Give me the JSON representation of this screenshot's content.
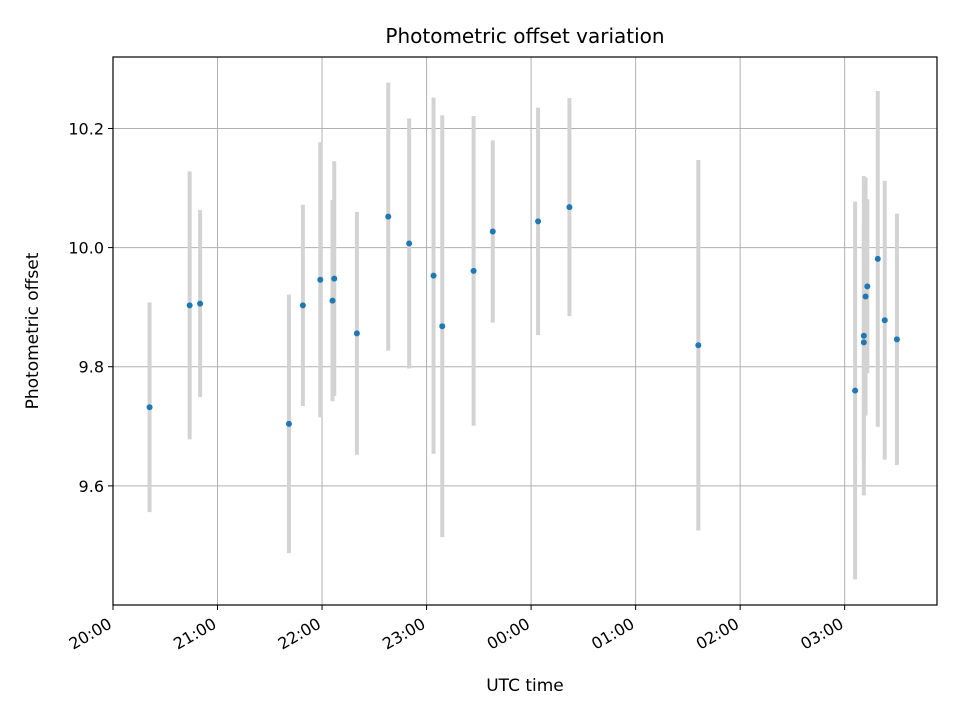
{
  "chart_data": {
    "type": "scatter",
    "title": "Photometric offset variation",
    "xlabel": "UTC time",
    "ylabel": "Photometric offset",
    "x_ticks": [
      "20:00",
      "21:00",
      "22:00",
      "23:00",
      "00:00",
      "01:00",
      "02:00",
      "03:00"
    ],
    "y_ticks": [
      "9.6",
      "9.8",
      "10.0",
      "10.2"
    ],
    "xlim": [
      "20:00",
      "03:53"
    ],
    "ylim": [
      9.4,
      10.32
    ],
    "grid": true,
    "colors": {
      "point": "#1f77b4",
      "errorbar": "#d3d3d3",
      "grid": "#b0b0b0"
    },
    "points": [
      {
        "time": "20:21",
        "y": 9.732,
        "err": 0.176
      },
      {
        "time": "20:44",
        "y": 9.903,
        "err": 0.225
      },
      {
        "time": "20:50",
        "y": 9.906,
        "err": 0.157
      },
      {
        "time": "21:41",
        "y": 9.704,
        "err": 0.217
      },
      {
        "time": "21:49",
        "y": 9.903,
        "err": 0.169
      },
      {
        "time": "21:59",
        "y": 9.946,
        "err": 0.231
      },
      {
        "time": "22:06",
        "y": 9.911,
        "err": 0.169
      },
      {
        "time": "22:07",
        "y": 9.948,
        "err": 0.197
      },
      {
        "time": "22:20",
        "y": 9.856,
        "err": 0.204
      },
      {
        "time": "22:38",
        "y": 10.052,
        "err": 0.225
      },
      {
        "time": "22:50",
        "y": 10.007,
        "err": 0.21
      },
      {
        "time": "23:04",
        "y": 9.953,
        "err": 0.299
      },
      {
        "time": "23:09",
        "y": 9.868,
        "err": 0.354
      },
      {
        "time": "23:27",
        "y": 9.961,
        "err": 0.26
      },
      {
        "time": "23:38",
        "y": 10.027,
        "err": 0.153
      },
      {
        "time": "00:04",
        "y": 10.044,
        "err": 0.191
      },
      {
        "time": "00:22",
        "y": 10.068,
        "err": 0.183
      },
      {
        "time": "01:36",
        "y": 9.836,
        "err": 0.311
      },
      {
        "time": "03:06",
        "y": 9.76,
        "err": 0.317
      },
      {
        "time": "03:11",
        "y": 9.841,
        "err": 0.197
      },
      {
        "time": "03:11",
        "y": 9.852,
        "err": 0.268
      },
      {
        "time": "03:12",
        "y": 9.918,
        "err": 0.2
      },
      {
        "time": "03:13",
        "y": 9.935,
        "err": 0.146
      },
      {
        "time": "03:19",
        "y": 9.981,
        "err": 0.282
      },
      {
        "time": "03:23",
        "y": 9.878,
        "err": 0.234
      },
      {
        "time": "03:30",
        "y": 9.846,
        "err": 0.211
      }
    ]
  }
}
